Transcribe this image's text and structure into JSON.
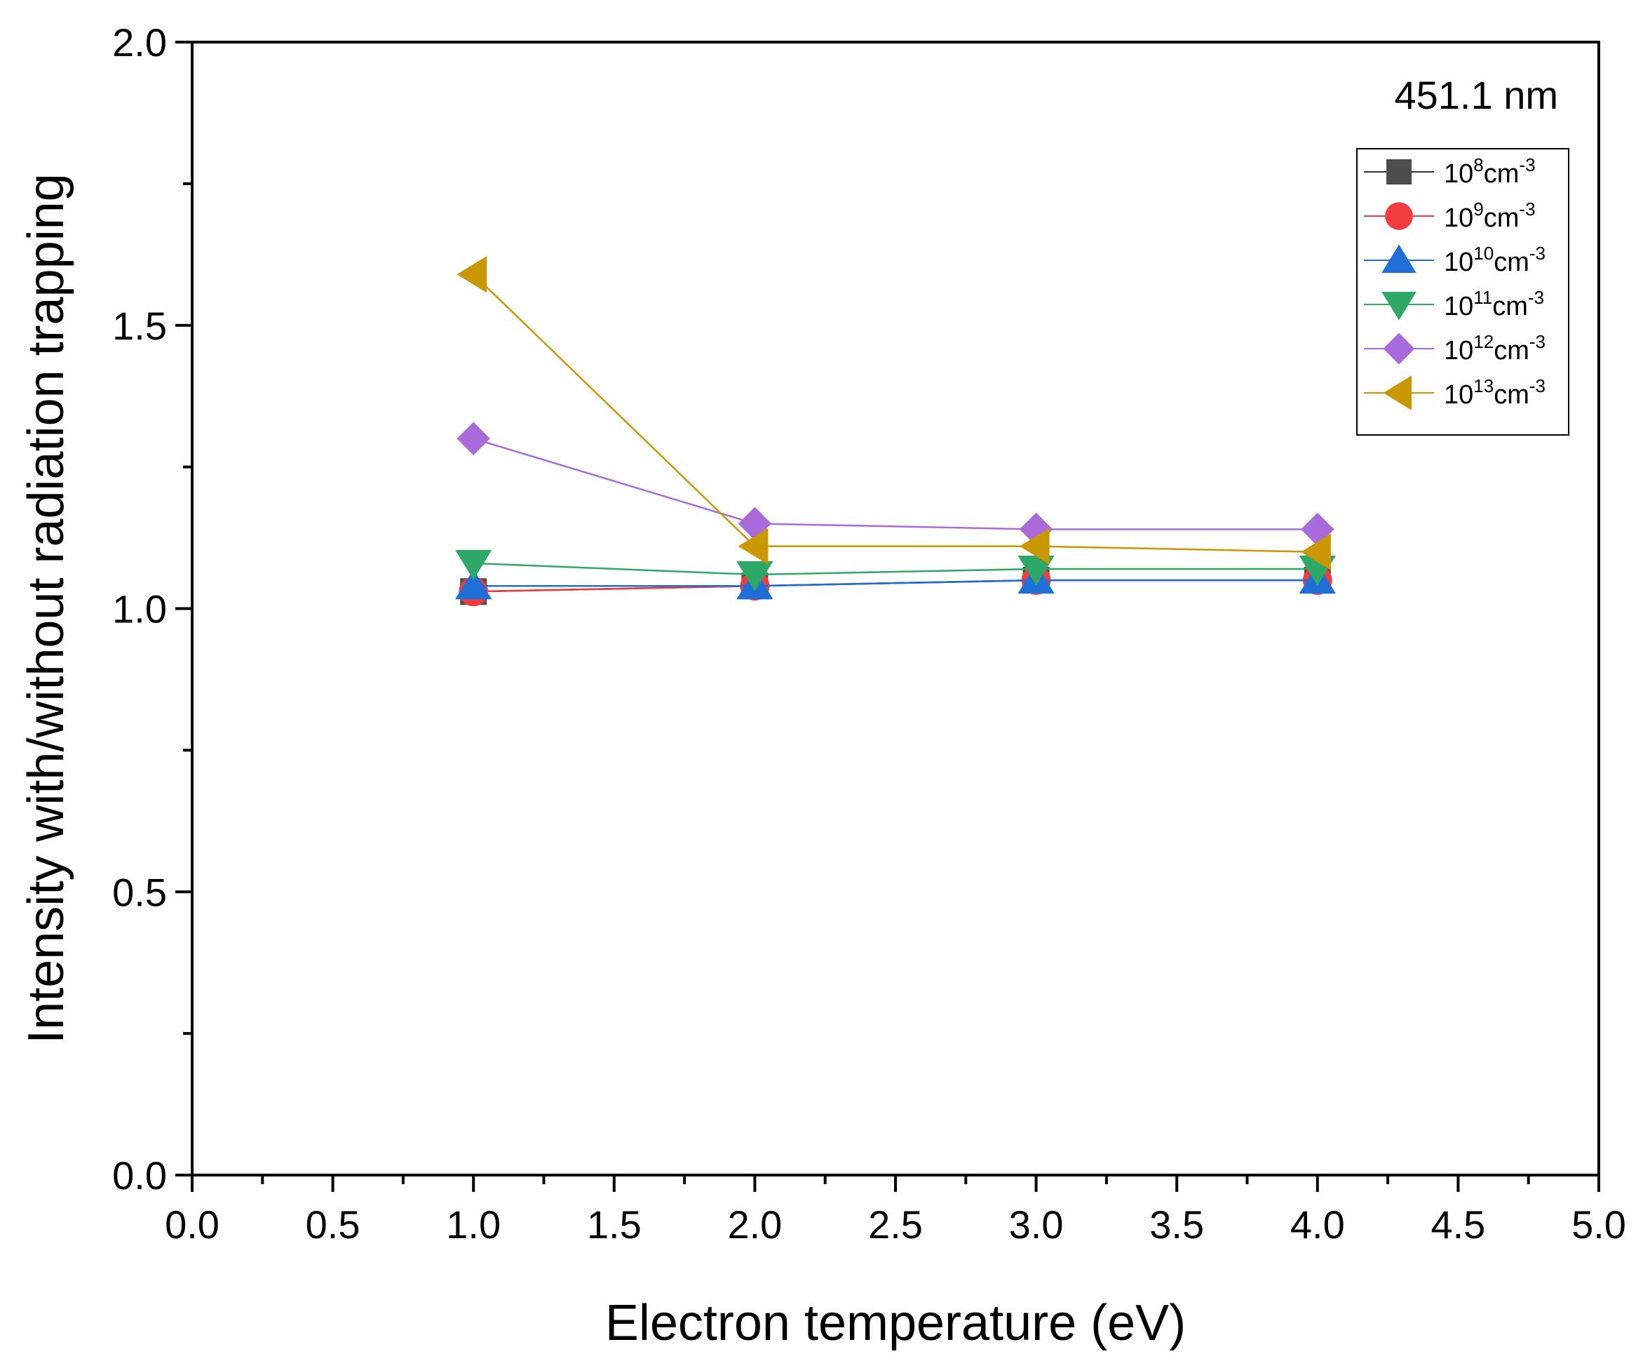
{
  "chart_data": {
    "type": "line",
    "title": "",
    "annotation": "451.1 nm",
    "xlabel": "Electron temperature (eV)",
    "ylabel": "Intensity with/without radiation trapping",
    "xlim": [
      0.0,
      5.0
    ],
    "ylim": [
      0.0,
      2.0
    ],
    "xticks": [
      "0.0",
      "0.5",
      "1.0",
      "1.5",
      "2.0",
      "2.5",
      "3.0",
      "3.5",
      "4.0",
      "4.5",
      "5.0"
    ],
    "yticks": [
      "0.0",
      "0.5",
      "1.0",
      "1.5",
      "2.0"
    ],
    "x": [
      1.0,
      2.0,
      3.0,
      4.0
    ],
    "legend_position": "top-right",
    "series": [
      {
        "name": "10^8cm^-3",
        "base": "10",
        "exp": "8",
        "unit": "cm",
        "unit_exp": "-3",
        "marker": "square",
        "color": "#4d4d4d",
        "line_color": "#333333",
        "values": [
          1.03,
          1.04,
          1.05,
          1.05
        ]
      },
      {
        "name": "10^9cm^-3",
        "base": "10",
        "exp": "9",
        "unit": "cm",
        "unit_exp": "-3",
        "marker": "circle",
        "color": "#f03c3c",
        "line_color": "#f03c3c",
        "values": [
          1.03,
          1.04,
          1.05,
          1.05
        ]
      },
      {
        "name": "10^10cm^-3",
        "base": "10",
        "exp": "10",
        "unit": "cm",
        "unit_exp": "-3",
        "marker": "triangle-up",
        "color": "#1f6fd6",
        "line_color": "#1f6fd6",
        "values": [
          1.04,
          1.04,
          1.05,
          1.05
        ]
      },
      {
        "name": "10^11cm^-3",
        "base": "10",
        "exp": "11",
        "unit": "cm",
        "unit_exp": "-3",
        "marker": "triangle-down",
        "color": "#2ea866",
        "line_color": "#2ea866",
        "values": [
          1.08,
          1.06,
          1.07,
          1.07
        ]
      },
      {
        "name": "10^12cm^-3",
        "base": "10",
        "exp": "12",
        "unit": "cm",
        "unit_exp": "-3",
        "marker": "diamond",
        "color": "#a96bdc",
        "line_color": "#a96bdc",
        "values": [
          1.3,
          1.15,
          1.14,
          1.14
        ]
      },
      {
        "name": "10^13cm^-3",
        "base": "10",
        "exp": "13",
        "unit": "cm",
        "unit_exp": "-3",
        "marker": "triangle-left",
        "color": "#c99700",
        "line_color": "#c99700",
        "values": [
          1.59,
          1.11,
          1.11,
          1.1
        ]
      }
    ]
  }
}
